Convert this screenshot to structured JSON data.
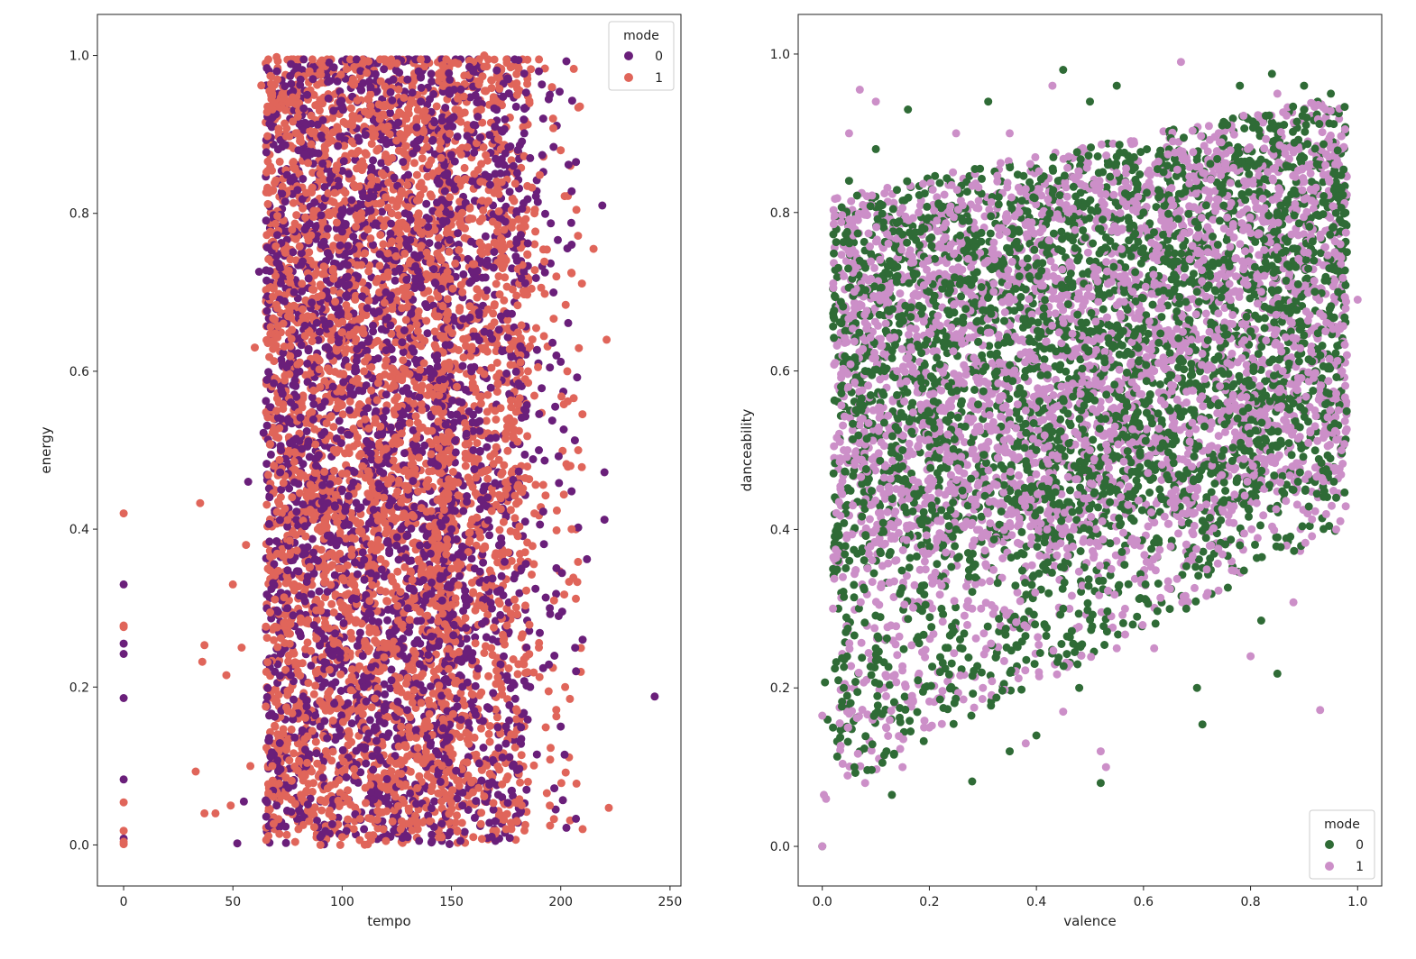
{
  "chart_data": [
    {
      "type": "scatter",
      "xlabel": "tempo",
      "ylabel": "energy",
      "xlim": [
        -12,
        255
      ],
      "ylim": [
        -0.052,
        1.052
      ],
      "xticks": [
        0,
        50,
        100,
        150,
        200,
        250
      ],
      "xtick_labels": [
        "0",
        "50",
        "100",
        "150",
        "200",
        "250"
      ],
      "yticks": [
        0.0,
        0.2,
        0.4,
        0.6,
        0.8,
        1.0
      ],
      "ytick_labels": [
        "0.0",
        "0.2",
        "0.4",
        "0.6",
        "0.8",
        "1.0"
      ],
      "grid": false,
      "legend": {
        "title": "mode",
        "position": "top-right"
      },
      "series": [
        {
          "name": "0",
          "color": "#6a1f7a",
          "points": [
            [
              0,
              0.33
            ],
            [
              0,
              0.255
            ],
            [
              0,
              0.242
            ],
            [
              0,
              0.186
            ],
            [
              0,
              0.083
            ],
            [
              0,
              0.008
            ],
            [
              243,
              0.188
            ],
            [
              219,
              0.81
            ],
            [
              220,
              0.472
            ],
            [
              220,
              0.412
            ],
            [
              212,
              0.362
            ],
            [
              208,
              0.402
            ],
            [
              205,
              0.828
            ],
            [
              200,
              0.612
            ],
            [
              207,
              0.22
            ],
            [
              210,
              0.26
            ],
            [
              62,
              0.726
            ],
            [
              64,
              0.522
            ],
            [
              57,
              0.46
            ],
            [
              55,
              0.055
            ],
            [
              52,
              0.002
            ],
            [
              84,
              0.95
            ],
            [
              96,
              0.93
            ],
            [
              113,
              0.96
            ],
            [
              135,
              0.98
            ],
            [
              160,
              0.98
            ],
            [
              176,
              0.97
            ],
            [
              190,
              0.98
            ],
            [
              195,
              0.95
            ],
            [
              186,
              0.87
            ],
            [
              180,
              0.74
            ],
            [
              184,
              0.55
            ],
            [
              190,
              0.5
            ],
            [
              182,
              0.35
            ],
            [
              186,
              0.2
            ],
            [
              178,
              0.1
            ],
            [
              170,
              0.03
            ],
            [
              155,
              0.05
            ],
            [
              145,
              0.08
            ],
            [
              130,
              0.01
            ],
            [
              110,
              0.02
            ],
            [
              90,
              0.01
            ],
            [
              70,
              0.05
            ],
            [
              75,
              0.3
            ],
            [
              72,
              0.5
            ],
            [
              78,
              0.7
            ],
            [
              80,
              0.88
            ],
            [
              100,
              0.8
            ],
            [
              120,
              0.7
            ],
            [
              140,
              0.6
            ],
            [
              160,
              0.5
            ],
            [
              150,
              0.4
            ],
            [
              130,
              0.3
            ],
            [
              110,
              0.2
            ],
            [
              90,
              0.15
            ],
            [
              100,
              0.45
            ],
            [
              120,
              0.55
            ],
            [
              140,
              0.25
            ],
            [
              165,
              0.65
            ],
            [
              170,
              0.85
            ],
            [
              175,
              0.15
            ],
            [
              195,
              0.3
            ],
            [
              200,
              0.15
            ],
            [
              198,
              0.62
            ],
            [
              192,
              0.92
            ]
          ]
        },
        {
          "name": "1",
          "color": "#e0655a",
          "points": [
            [
              0,
              0.42
            ],
            [
              0,
              0.278
            ],
            [
              0,
              0.276
            ],
            [
              0,
              0.054
            ],
            [
              0,
              0.018
            ],
            [
              0,
              0.004
            ],
            [
              0,
              0.001
            ],
            [
              35,
              0.433
            ],
            [
              37,
              0.253
            ],
            [
              36,
              0.232
            ],
            [
              33,
              0.093
            ],
            [
              37,
              0.04
            ],
            [
              42,
              0.04
            ],
            [
              47,
              0.215
            ],
            [
              50,
              0.33
            ],
            [
              49,
              0.05
            ],
            [
              63,
              0.962
            ],
            [
              70,
              0.998
            ],
            [
              221,
              0.64
            ],
            [
              222,
              0.047
            ],
            [
              215,
              0.755
            ],
            [
              210,
              0.02
            ],
            [
              205,
              0.4
            ],
            [
              203,
              0.6
            ],
            [
              200,
              0.88
            ],
            [
              196,
              0.96
            ],
            [
              60,
              0.63
            ],
            [
              56,
              0.38
            ],
            [
              54,
              0.25
            ],
            [
              58,
              0.1
            ],
            [
              85,
              0.98
            ],
            [
              105,
              0.97
            ],
            [
              125,
              0.99
            ],
            [
              150,
              0.99
            ],
            [
              165,
              1.0
            ],
            [
              180,
              0.95
            ],
            [
              188,
              0.8
            ],
            [
              185,
              0.6
            ],
            [
              188,
              0.42
            ],
            [
              190,
              0.25
            ],
            [
              185,
              0.08
            ],
            [
              175,
              0.02
            ],
            [
              160,
              0.01
            ],
            [
              140,
              0.03
            ],
            [
              120,
              0.005
            ],
            [
              100,
              0.01
            ],
            [
              80,
              0.02
            ],
            [
              68,
              0.1
            ],
            [
              66,
              0.35
            ],
            [
              70,
              0.55
            ],
            [
              74,
              0.75
            ],
            [
              90,
              0.85
            ],
            [
              110,
              0.6
            ],
            [
              130,
              0.45
            ],
            [
              150,
              0.35
            ],
            [
              140,
              0.15
            ],
            [
              120,
              0.25
            ],
            [
              100,
              0.35
            ],
            [
              85,
              0.65
            ],
            [
              115,
              0.9
            ],
            [
              135,
              0.8
            ],
            [
              155,
              0.7
            ],
            [
              170,
              0.55
            ],
            [
              165,
              0.3
            ],
            [
              175,
              0.45
            ],
            [
              198,
              0.72
            ],
            [
              202,
              0.2
            ],
            [
              208,
              0.5
            ],
            [
              195,
              0.05
            ]
          ]
        }
      ]
    },
    {
      "type": "scatter",
      "xlabel": "valence",
      "ylabel": "danceability",
      "xlim": [
        -0.045,
        1.045
      ],
      "ylim": [
        -0.05,
        1.05
      ],
      "xticks": [
        0.0,
        0.2,
        0.4,
        0.6,
        0.8,
        1.0
      ],
      "xtick_labels": [
        "0.0",
        "0.2",
        "0.4",
        "0.6",
        "0.8",
        "1.0"
      ],
      "yticks": [
        0.0,
        0.2,
        0.4,
        0.6,
        0.8,
        1.0
      ],
      "ytick_labels": [
        "0.0",
        "0.2",
        "0.4",
        "0.6",
        "0.8",
        "1.0"
      ],
      "grid": false,
      "legend": {
        "title": "mode",
        "position": "bottom-right"
      },
      "series": [
        {
          "name": "0",
          "color": "#2f6b36",
          "points": [
            [
              0.0,
              0.0
            ],
            [
              0.005,
              0.207
            ],
            [
              0.01,
              0.16
            ],
            [
              0.02,
              0.15
            ],
            [
              0.03,
              0.73
            ],
            [
              0.05,
              0.84
            ],
            [
              0.1,
              0.88
            ],
            [
              0.13,
              0.065
            ],
            [
              0.16,
              0.93
            ],
            [
              0.28,
              0.082
            ],
            [
              0.31,
              0.94
            ],
            [
              0.45,
              0.98
            ],
            [
              0.5,
              0.94
            ],
            [
              0.52,
              0.08
            ],
            [
              0.55,
              0.96
            ],
            [
              0.7,
              0.2
            ],
            [
              0.71,
              0.154
            ],
            [
              0.78,
              0.96
            ],
            [
              0.82,
              0.285
            ],
            [
              0.84,
              0.975
            ],
            [
              0.85,
              0.218
            ],
            [
              0.9,
              0.96
            ],
            [
              0.95,
              0.95
            ],
            [
              0.96,
              0.44
            ],
            [
              0.97,
              0.83
            ],
            [
              0.98,
              0.75
            ],
            [
              0.03,
              0.3
            ],
            [
              0.05,
              0.45
            ],
            [
              0.08,
              0.6
            ],
            [
              0.1,
              0.25
            ],
            [
              0.15,
              0.5
            ],
            [
              0.2,
              0.7
            ],
            [
              0.25,
              0.4
            ],
            [
              0.3,
              0.6
            ],
            [
              0.35,
              0.75
            ],
            [
              0.4,
              0.5
            ],
            [
              0.45,
              0.3
            ],
            [
              0.5,
              0.65
            ],
            [
              0.55,
              0.45
            ],
            [
              0.6,
              0.8
            ],
            [
              0.65,
              0.55
            ],
            [
              0.7,
              0.7
            ],
            [
              0.75,
              0.5
            ],
            [
              0.8,
              0.65
            ],
            [
              0.85,
              0.8
            ],
            [
              0.9,
              0.55
            ],
            [
              0.92,
              0.7
            ],
            [
              0.88,
              0.45
            ],
            [
              0.78,
              0.38
            ],
            [
              0.68,
              0.3
            ],
            [
              0.58,
              0.28
            ],
            [
              0.48,
              0.2
            ],
            [
              0.4,
              0.14
            ],
            [
              0.35,
              0.12
            ],
            [
              0.22,
              0.22
            ],
            [
              0.12,
              0.12
            ],
            [
              0.06,
              0.1
            ],
            [
              0.04,
              0.2
            ]
          ]
        },
        {
          "name": "1",
          "color": "#cc8fc8",
          "points": [
            [
              0.0,
              0.0
            ],
            [
              0.0,
              0.165
            ],
            [
              0.003,
              0.065
            ],
            [
              0.007,
              0.06
            ],
            [
              0.07,
              0.955
            ],
            [
              0.1,
              0.94
            ],
            [
              0.05,
              0.9
            ],
            [
              0.43,
              0.96
            ],
            [
              0.52,
              0.12
            ],
            [
              0.53,
              0.1
            ],
            [
              0.67,
              0.99
            ],
            [
              0.8,
              0.24
            ],
            [
              0.88,
              0.308
            ],
            [
              0.93,
              0.172
            ],
            [
              1.0,
              0.69
            ],
            [
              0.98,
              0.62
            ],
            [
              0.97,
              0.5
            ],
            [
              0.96,
              0.4
            ],
            [
              0.94,
              0.93
            ],
            [
              0.85,
              0.95
            ],
            [
              0.02,
              0.3
            ],
            [
              0.04,
              0.5
            ],
            [
              0.06,
              0.7
            ],
            [
              0.1,
              0.4
            ],
            [
              0.14,
              0.6
            ],
            [
              0.18,
              0.8
            ],
            [
              0.22,
              0.5
            ],
            [
              0.28,
              0.3
            ],
            [
              0.32,
              0.7
            ],
            [
              0.38,
              0.55
            ],
            [
              0.42,
              0.4
            ],
            [
              0.46,
              0.8
            ],
            [
              0.5,
              0.5
            ],
            [
              0.54,
              0.35
            ],
            [
              0.58,
              0.7
            ],
            [
              0.62,
              0.6
            ],
            [
              0.66,
              0.45
            ],
            [
              0.72,
              0.75
            ],
            [
              0.76,
              0.55
            ],
            [
              0.82,
              0.7
            ],
            [
              0.86,
              0.6
            ],
            [
              0.9,
              0.75
            ],
            [
              0.94,
              0.65
            ],
            [
              0.72,
              0.32
            ],
            [
              0.62,
              0.25
            ],
            [
              0.55,
              0.25
            ],
            [
              0.45,
              0.17
            ],
            [
              0.38,
              0.13
            ],
            [
              0.3,
              0.2
            ],
            [
              0.2,
              0.15
            ],
            [
              0.15,
              0.1
            ],
            [
              0.08,
              0.08
            ],
            [
              0.55,
              0.85
            ],
            [
              0.35,
              0.9
            ],
            [
              0.25,
              0.9
            ]
          ]
        }
      ]
    }
  ]
}
